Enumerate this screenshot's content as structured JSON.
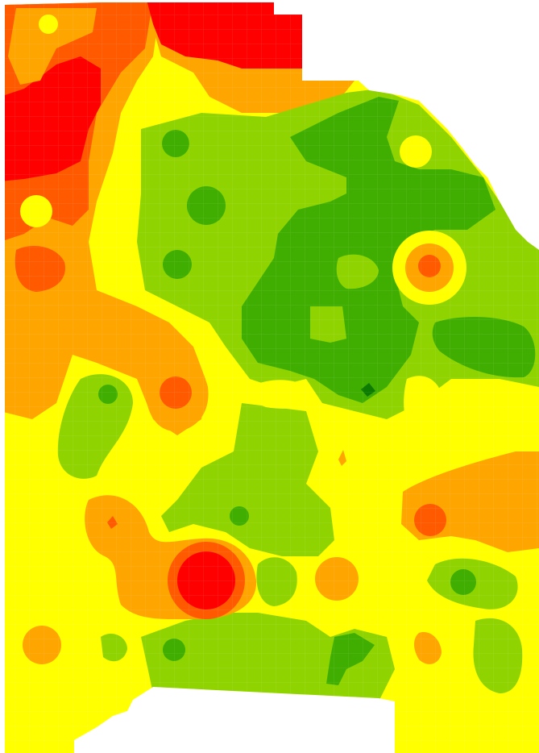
{
  "map": {
    "type": "contour-heatmap",
    "levels": [
      {
        "name": "darkest-green",
        "color": "#0d7a00"
      },
      {
        "name": "dark-green",
        "color": "#3fae00"
      },
      {
        "name": "light-green",
        "color": "#8fd400"
      },
      {
        "name": "yellow",
        "color": "#ffff00"
      },
      {
        "name": "orange",
        "color": "#ffa500"
      },
      {
        "name": "dark-orange",
        "color": "#ff5a00"
      },
      {
        "name": "red",
        "color": "#ff0000"
      }
    ],
    "background": "#ffffff"
  }
}
